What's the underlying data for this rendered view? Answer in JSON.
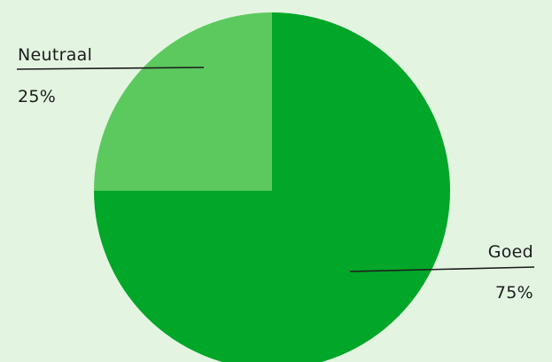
{
  "chart_data": {
    "type": "pie",
    "title": "",
    "slices": [
      {
        "label": "Goed",
        "value": 75,
        "value_label": "75%",
        "color": "#02a628"
      },
      {
        "label": "Neutraal",
        "value": 25,
        "value_label": "25%",
        "color": "#5cc95e"
      }
    ],
    "start_angle_deg": 0,
    "direction": "clockwise",
    "legend": "none",
    "label_style": "leader-lines with name above line and percentage below"
  },
  "colors": {
    "background": "#e3f5e1",
    "leader_line": "#1c1c1c",
    "label_text": "#1c1c1c"
  }
}
